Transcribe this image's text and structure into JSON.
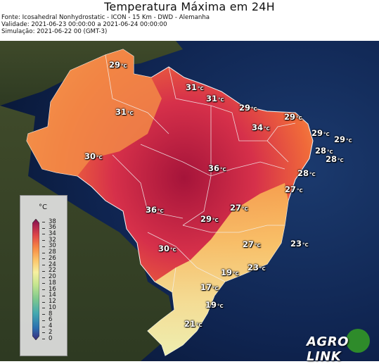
{
  "header": {
    "title": "Temperatura Máxima em 24H",
    "source": "Fonte: Icosahedral Nonhydrostatic - ICON - 15 Km - DWD - Alemanha",
    "validity": "Validade: 2021-06-23 00:00:00 a 2021-06-24 00:00:00",
    "simulation": "Simulação: 2021-06-22 00 (GMT-3)"
  },
  "map_labels": [
    {
      "value": "29",
      "unit": "°C"
    },
    {
      "value": "31",
      "unit": "°C"
    },
    {
      "value": "31",
      "unit": "°C"
    },
    {
      "value": "31",
      "unit": "°C"
    },
    {
      "value": "29",
      "unit": "°C"
    },
    {
      "value": "34",
      "unit": "°C"
    },
    {
      "value": "29",
      "unit": "°C"
    },
    {
      "value": "29",
      "unit": "°C"
    },
    {
      "value": "30",
      "unit": "°C"
    },
    {
      "value": "28",
      "unit": "°C"
    },
    {
      "value": "29",
      "unit": "°C"
    },
    {
      "value": "28",
      "unit": "°C"
    },
    {
      "value": "36",
      "unit": "°C"
    },
    {
      "value": "28",
      "unit": "°C"
    },
    {
      "value": "27",
      "unit": "°C"
    },
    {
      "value": "27",
      "unit": "°C"
    },
    {
      "value": "36",
      "unit": "°C"
    },
    {
      "value": "29",
      "unit": "°C"
    },
    {
      "value": "27",
      "unit": "°C"
    },
    {
      "value": "23",
      "unit": "°C"
    },
    {
      "value": "30",
      "unit": "°C"
    },
    {
      "value": "19",
      "unit": "°C"
    },
    {
      "value": "23",
      "unit": "°C"
    },
    {
      "value": "17",
      "unit": "°C"
    },
    {
      "value": "19",
      "unit": "°C"
    },
    {
      "value": "21",
      "unit": "°C"
    }
  ],
  "legend": {
    "unit": "°C",
    "ticks": [
      "38",
      "36",
      "34",
      "32",
      "30",
      "28",
      "26",
      "24",
      "22",
      "20",
      "18",
      "16",
      "14",
      "12",
      "10",
      "8",
      "6",
      "4",
      "2",
      "0"
    ],
    "colors": [
      "#ffffcc",
      "#ffeda0",
      "#fed976",
      "#feb24c",
      "#fd8d3c",
      "#fc4e2a",
      "#e31a1c",
      "#bd0026",
      "#800026",
      "#4d004b"
    ]
  },
  "logo": {
    "text": "AGRO LINK"
  }
}
